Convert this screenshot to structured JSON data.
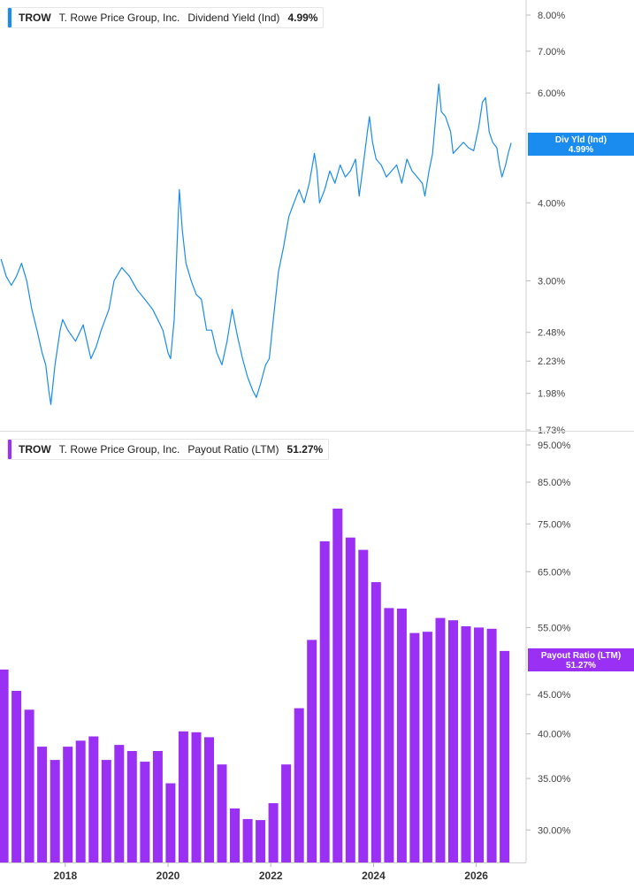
{
  "charts": [
    {
      "legend": {
        "ticker": "TROW",
        "company": "T. Rowe Price Group, Inc.",
        "metric": "Dividend Yield (Ind)",
        "value": "4.99%"
      },
      "tag": {
        "label": "Div Yld (Ind)",
        "value": "4.99%"
      },
      "color": "#1a8cf0"
    },
    {
      "legend": {
        "ticker": "TROW",
        "company": "T. Rowe Price Group, Inc.",
        "metric": "Payout Ratio (LTM)",
        "value": "51.27%"
      },
      "tag": {
        "label": "Payout Ratio (LTM)",
        "value": "51.27%"
      },
      "color": "#9b30f5"
    }
  ],
  "chart_data": [
    {
      "type": "line",
      "series": [
        {
          "name": "Dividend Yield (Ind)",
          "points": [
            [
              2016.75,
              3.25
            ],
            [
              2016.85,
              3.05
            ],
            [
              2016.95,
              2.95
            ],
            [
              2017.05,
              3.05
            ],
            [
              2017.15,
              3.2
            ],
            [
              2017.25,
              3.0
            ],
            [
              2017.35,
              2.7
            ],
            [
              2017.45,
              2.5
            ],
            [
              2017.55,
              2.3
            ],
            [
              2017.62,
              2.2
            ],
            [
              2017.68,
              2.0
            ],
            [
              2017.72,
              1.9
            ],
            [
              2017.8,
              2.2
            ],
            [
              2017.9,
              2.5
            ],
            [
              2017.95,
              2.6
            ],
            [
              2018.05,
              2.5
            ],
            [
              2018.2,
              2.4
            ],
            [
              2018.35,
              2.55
            ],
            [
              2018.5,
              2.25
            ],
            [
              2018.6,
              2.35
            ],
            [
              2018.7,
              2.5
            ],
            [
              2018.85,
              2.7
            ],
            [
              2018.95,
              3.0
            ],
            [
              2019.1,
              3.15
            ],
            [
              2019.25,
              3.05
            ],
            [
              2019.4,
              2.9
            ],
            [
              2019.55,
              2.8
            ],
            [
              2019.7,
              2.7
            ],
            [
              2019.8,
              2.6
            ],
            [
              2019.9,
              2.5
            ],
            [
              2020.0,
              2.3
            ],
            [
              2020.05,
              2.25
            ],
            [
              2020.12,
              2.6
            ],
            [
              2020.18,
              3.5
            ],
            [
              2020.22,
              4.2
            ],
            [
              2020.28,
              3.6
            ],
            [
              2020.35,
              3.2
            ],
            [
              2020.45,
              3.0
            ],
            [
              2020.55,
              2.85
            ],
            [
              2020.65,
              2.8
            ],
            [
              2020.75,
              2.5
            ],
            [
              2020.85,
              2.5
            ],
            [
              2020.95,
              2.3
            ],
            [
              2021.05,
              2.2
            ],
            [
              2021.15,
              2.4
            ],
            [
              2021.25,
              2.7
            ],
            [
              2021.35,
              2.45
            ],
            [
              2021.45,
              2.25
            ],
            [
              2021.55,
              2.1
            ],
            [
              2021.65,
              2.0
            ],
            [
              2021.72,
              1.95
            ],
            [
              2021.8,
              2.05
            ],
            [
              2021.9,
              2.2
            ],
            [
              2021.97,
              2.25
            ],
            [
              2022.05,
              2.6
            ],
            [
              2022.15,
              3.1
            ],
            [
              2022.25,
              3.4
            ],
            [
              2022.35,
              3.8
            ],
            [
              2022.45,
              4.0
            ],
            [
              2022.55,
              4.2
            ],
            [
              2022.65,
              4.0
            ],
            [
              2022.75,
              4.3
            ],
            [
              2022.85,
              4.8
            ],
            [
              2022.9,
              4.5
            ],
            [
              2022.95,
              4.0
            ],
            [
              2023.05,
              4.2
            ],
            [
              2023.15,
              4.5
            ],
            [
              2023.25,
              4.3
            ],
            [
              2023.35,
              4.6
            ],
            [
              2023.45,
              4.4
            ],
            [
              2023.55,
              4.5
            ],
            [
              2023.65,
              4.7
            ],
            [
              2023.72,
              4.1
            ],
            [
              2023.8,
              4.6
            ],
            [
              2023.88,
              5.2
            ],
            [
              2023.92,
              5.5
            ],
            [
              2023.98,
              5.0
            ],
            [
              2024.05,
              4.7
            ],
            [
              2024.15,
              4.6
            ],
            [
              2024.25,
              4.4
            ],
            [
              2024.35,
              4.5
            ],
            [
              2024.45,
              4.6
            ],
            [
              2024.55,
              4.3
            ],
            [
              2024.65,
              4.7
            ],
            [
              2024.75,
              4.5
            ],
            [
              2024.85,
              4.4
            ],
            [
              2024.95,
              4.3
            ],
            [
              2025.0,
              4.1
            ],
            [
              2025.08,
              4.5
            ],
            [
              2025.15,
              4.8
            ],
            [
              2025.22,
              5.6
            ],
            [
              2025.27,
              6.2
            ],
            [
              2025.32,
              5.6
            ],
            [
              2025.4,
              5.5
            ],
            [
              2025.5,
              5.2
            ],
            [
              2025.55,
              4.8
            ],
            [
              2025.65,
              4.9
            ],
            [
              2025.75,
              5.0
            ],
            [
              2025.85,
              4.9
            ],
            [
              2025.95,
              4.85
            ],
            [
              2026.05,
              5.3
            ],
            [
              2026.12,
              5.8
            ],
            [
              2026.18,
              5.9
            ],
            [
              2026.25,
              5.2
            ],
            [
              2026.32,
              5.0
            ],
            [
              2026.4,
              4.9
            ],
            [
              2026.45,
              4.6
            ],
            [
              2026.5,
              4.4
            ],
            [
              2026.57,
              4.6
            ],
            [
              2026.62,
              4.8
            ],
            [
              2026.68,
              4.99
            ]
          ]
        }
      ],
      "xlim": [
        2016.73,
        2026.97
      ],
      "ylim": [
        1.73,
        8.0
      ],
      "yscale": "log",
      "yticks": [
        "8.00%",
        "7.00%",
        "6.00%",
        "4.00%",
        "3.00%",
        "2.48%",
        "2.23%",
        "1.98%",
        "1.73%"
      ],
      "xticks": [
        "2018",
        "2020",
        "2022",
        "2024",
        "2026"
      ]
    },
    {
      "type": "bar",
      "series": [
        {
          "name": "Payout Ratio (LTM)",
          "points": [
            [
              2016.8,
              48.5
            ],
            [
              2017.05,
              45.5
            ],
            [
              2017.3,
              43.0
            ],
            [
              2017.55,
              38.5
            ],
            [
              2017.8,
              37.0
            ],
            [
              2018.05,
              38.5
            ],
            [
              2018.3,
              39.2
            ],
            [
              2018.55,
              39.7
            ],
            [
              2018.8,
              37.0
            ],
            [
              2019.05,
              38.7
            ],
            [
              2019.3,
              38.0
            ],
            [
              2019.55,
              36.8
            ],
            [
              2019.8,
              38.0
            ],
            [
              2020.05,
              34.5
            ],
            [
              2020.3,
              40.3
            ],
            [
              2020.55,
              40.2
            ],
            [
              2020.8,
              39.6
            ],
            [
              2021.05,
              36.5
            ],
            [
              2021.3,
              32.0
            ],
            [
              2021.55,
              31.0
            ],
            [
              2021.8,
              30.9
            ],
            [
              2022.05,
              32.5
            ],
            [
              2022.3,
              36.5
            ],
            [
              2022.55,
              43.2
            ],
            [
              2022.8,
              53.0
            ],
            [
              2023.05,
              71.2
            ],
            [
              2023.3,
              78.5
            ],
            [
              2023.55,
              72.0
            ],
            [
              2023.8,
              69.4
            ],
            [
              2024.05,
              63.0
            ],
            [
              2024.3,
              58.3
            ],
            [
              2024.55,
              58.2
            ],
            [
              2024.8,
              54.1
            ],
            [
              2025.05,
              54.3
            ],
            [
              2025.3,
              56.6
            ],
            [
              2025.55,
              56.2
            ],
            [
              2025.8,
              55.2
            ],
            [
              2026.05,
              55.0
            ],
            [
              2026.3,
              54.8
            ],
            [
              2026.55,
              51.27
            ]
          ]
        }
      ],
      "xlim": [
        2016.73,
        2026.97
      ],
      "ylim": [
        28.7,
        95.0
      ],
      "yscale": "log",
      "yticks": [
        "95.00%",
        "85.00%",
        "75.00%",
        "65.00%",
        "55.00%",
        "45.00%",
        "40.00%",
        "35.00%",
        "30.00%"
      ],
      "xticks": [
        "2018",
        "2020",
        "2022",
        "2024",
        "2026"
      ]
    }
  ]
}
